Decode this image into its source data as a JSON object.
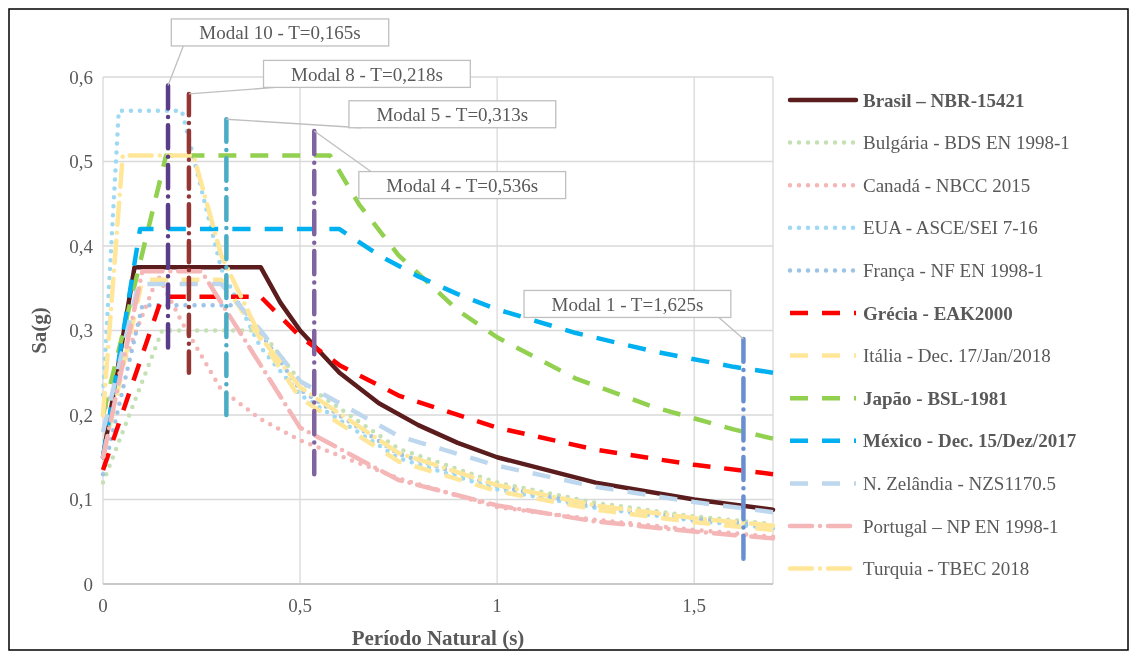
{
  "chart_data": {
    "type": "line",
    "xlabel": "Período Natural (s)",
    "ylabel": "Sa(g)",
    "xlim": [
      0,
      1.7
    ],
    "ylim": [
      0,
      0.6
    ],
    "xticks": [
      0,
      {
        "value": 0.5,
        "label": "0,5"
      },
      1,
      {
        "value": 1.5,
        "label": "1,5"
      }
    ],
    "yticks": [
      0,
      {
        "value": 0.1,
        "label": "0,1"
      },
      {
        "value": 0.2,
        "label": "0,2"
      },
      {
        "value": 0.3,
        "label": "0,3"
      },
      {
        "value": 0.4,
        "label": "0,4"
      },
      {
        "value": 0.5,
        "label": "0,5"
      },
      {
        "value": 0.6,
        "label": "0,6"
      }
    ],
    "grid": true,
    "legend": "right",
    "marker": "none",
    "series": [
      {
        "name": "Brasil – NBR-15421",
        "color": "#5a1c1c",
        "line_style": "solid",
        "x": [
          0,
          0.08,
          0.4,
          0.45,
          0.5,
          0.6,
          0.7,
          0.8,
          0.9,
          1,
          1.25,
          1.5,
          1.7
        ],
        "values": [
          0.15,
          0.375,
          0.375,
          0.333,
          0.3,
          0.25,
          0.214,
          0.188,
          0.167,
          0.15,
          0.12,
          0.1,
          0.088
        ]
      },
      {
        "name": "Bulgária - BDS EN 1998-1",
        "color": "#c5e0b4",
        "line_style": "dotted",
        "x": [
          0,
          0.15,
          0.4,
          0.5,
          0.75,
          1,
          1.25,
          1.5,
          1.7
        ],
        "values": [
          0.12,
          0.3,
          0.3,
          0.24,
          0.16,
          0.12,
          0.096,
          0.08,
          0.071
        ]
      },
      {
        "name": "Canadá - NBCC 2015",
        "color": "#f4b6b6",
        "line_style": "dotted",
        "x": [
          0,
          0.14,
          0.2,
          0.3,
          0.4,
          0.5,
          0.75,
          1,
          1.25,
          1.5,
          1.7
        ],
        "values": [
          0.2,
          0.365,
          0.31,
          0.23,
          0.195,
          0.17,
          0.125,
          0.091,
          0.076,
          0.064,
          0.056
        ]
      },
      {
        "name": "EUA - ASCE/SEI 7-16",
        "color": "#9dd9f3",
        "line_style": "dotted",
        "x": [
          0,
          0.04,
          0.2,
          0.3,
          0.4,
          0.5,
          0.75,
          1,
          1.25,
          1.5,
          1.7
        ],
        "values": [
          0.224,
          0.56,
          0.56,
          0.373,
          0.28,
          0.224,
          0.149,
          0.112,
          0.09,
          0.075,
          0.066
        ]
      },
      {
        "name": "França - NF EN 1998-1",
        "color": "#9dc3e6",
        "line_style": "dotted",
        "x": [
          0,
          0.1,
          0.35,
          0.5,
          0.75,
          1,
          1.25,
          1.5,
          1.7
        ],
        "values": [
          0.13,
          0.33,
          0.33,
          0.23,
          0.154,
          0.116,
          0.092,
          0.077,
          0.068
        ]
      },
      {
        "name": "Grécia - EAK2000",
        "color": "#ff0000",
        "line_style": "dashed",
        "x": [
          0,
          0.15,
          0.4,
          0.5,
          0.6,
          0.75,
          1,
          1.25,
          1.5,
          1.7
        ],
        "values": [
          0.135,
          0.34,
          0.34,
          0.293,
          0.259,
          0.223,
          0.185,
          0.159,
          0.141,
          0.13
        ]
      },
      {
        "name": "Itália - Dec. 17/Jan/2018",
        "color": "#ffe699",
        "line_style": "dashed",
        "x": [
          0,
          0.1,
          0.3,
          0.5,
          0.75,
          1,
          1.25,
          1.5,
          1.7
        ],
        "values": [
          0.15,
          0.36,
          0.36,
          0.22,
          0.145,
          0.11,
          0.088,
          0.073,
          0.064
        ]
      },
      {
        "name": "Japão - BSL-1981",
        "color": "#92d050",
        "line_style": "dashed",
        "x": [
          0,
          0.16,
          0.576,
          0.65,
          0.75,
          0.9,
          1,
          1.2,
          1.4,
          1.6,
          1.7
        ],
        "values": [
          0.2,
          0.507,
          0.507,
          0.449,
          0.389,
          0.324,
          0.292,
          0.243,
          0.209,
          0.183,
          0.172
        ]
      },
      {
        "name": "México - Dec. 15/Dez/2017",
        "color": "#00b0f0",
        "line_style": "dashed",
        "x": [
          0,
          0.094,
          0.6,
          0.7,
          0.8,
          0.9,
          1,
          1.2,
          1.4,
          1.6,
          1.7
        ],
        "values": [
          0.15,
          0.42,
          0.42,
          0.389,
          0.364,
          0.343,
          0.325,
          0.297,
          0.275,
          0.257,
          0.25
        ]
      },
      {
        "name": "N. Zelândia - NZS1170.5",
        "color": "#bdd7ee",
        "line_style": "dashed",
        "x": [
          0,
          0.09,
          0.3,
          0.4,
          0.5,
          0.75,
          1,
          1.25,
          1.5,
          1.7
        ],
        "values": [
          0.18,
          0.355,
          0.355,
          0.3,
          0.24,
          0.175,
          0.14,
          0.115,
          0.097,
          0.085
        ]
      },
      {
        "name": "Portugal – NP EN 1998-1",
        "color": "#f4b6b6",
        "line_style": "dashdot",
        "x": [
          0,
          0.1,
          0.25,
          0.5,
          0.75,
          1,
          1.25,
          1.5,
          1.7
        ],
        "values": [
          0.15,
          0.37,
          0.37,
          0.185,
          0.123,
          0.093,
          0.074,
          0.062,
          0.054
        ]
      },
      {
        "name": "Turquia - TBEC 2018",
        "color": "#ffe699",
        "line_style": "dashdot",
        "x": [
          0,
          0.05,
          0.23,
          0.3,
          0.4,
          0.5,
          0.75,
          1,
          1.25,
          1.5,
          1.7
        ],
        "values": [
          0.2,
          0.507,
          0.507,
          0.389,
          0.292,
          0.233,
          0.155,
          0.117,
          0.093,
          0.078,
          0.069
        ]
      },
      {
        "color": "#5b3c88",
        "line_style": "dashdot",
        "x": [
          0.165,
          0.165
        ],
        "values": [
          0.59,
          0.28
        ]
      },
      {
        "color": "#943634",
        "line_style": "dashdot",
        "x": [
          0.218,
          0.218
        ],
        "values": [
          0.58,
          0.25
        ]
      },
      {
        "color": "#4bacc6",
        "line_style": "dashdot",
        "x": [
          0.313,
          0.313
        ],
        "values": [
          0.55,
          0.2
        ]
      },
      {
        "color": "#8064a2",
        "line_style": "dashdot",
        "x": [
          0.536,
          0.536
        ],
        "values": [
          0.536,
          0.13
        ]
      },
      {
        "color": "#6a8fd0",
        "line_style": "dashdot",
        "x": [
          1.625,
          1.625
        ],
        "values": [
          0.29,
          0.03
        ]
      }
    ],
    "annotations": [
      {
        "text": "Modal 10 - T=0,165s",
        "x": 0.165,
        "y": 0.59
      },
      {
        "text": "Modal 8 - T=0,218s",
        "x": 0.218,
        "y": 0.58
      },
      {
        "text": "Modal 5 - T=0,313s",
        "x": 0.313,
        "y": 0.55
      },
      {
        "text": "Modal 4 - T=0,536s",
        "x": 0.536,
        "y": 0.536
      },
      {
        "text": "Modal 1 - T=1,625s",
        "x": 1.625,
        "y": 0.29
      }
    ]
  }
}
